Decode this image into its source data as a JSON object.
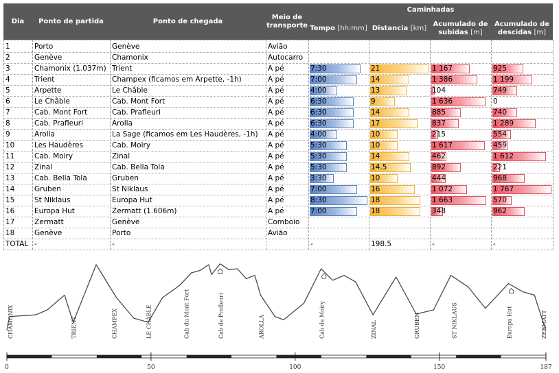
{
  "table": {
    "header": {
      "day": "Dia",
      "start": "Ponto de partida",
      "end": "Ponto de chegada",
      "transport": "Meio de transporte",
      "walks": "Caminhadas",
      "time": "Tempo",
      "time_unit": "[hh:mm]",
      "distance": "Distancia",
      "distance_unit": "[km]",
      "ascent": "Acumulado de subidas",
      "ascent_unit": "[m]",
      "descent": "Acumulado de descidas",
      "descent_unit": "[m]"
    },
    "rows": [
      {
        "day": "1",
        "start": "Porto",
        "end": "Genève",
        "transport": "Avião",
        "time": "",
        "distance": "",
        "ascent": "",
        "descent": ""
      },
      {
        "day": "2",
        "start": "Genève",
        "end": "Chamonix",
        "transport": "Autocarro",
        "time": "",
        "distance": "",
        "ascent": "",
        "descent": ""
      },
      {
        "day": "3",
        "start": "Chamonix (1.037m)",
        "end": "Trient",
        "transport": "A pé",
        "time": "7:30",
        "distance": "21",
        "ascent": "1 167",
        "descent": "925"
      },
      {
        "day": "4",
        "start": "Trient",
        "end": "Champex (ficamos em Arpette, -1h)",
        "transport": "A pé",
        "time": "7:00",
        "distance": "14",
        "ascent": "1 386",
        "descent": "1 199"
      },
      {
        "day": "5",
        "start": "Arpette",
        "end": "Le Châble",
        "transport": "A pé",
        "time": "4:00",
        "distance": "13",
        "ascent": "104",
        "descent": "749"
      },
      {
        "day": "6",
        "start": "Le Châble",
        "end": "Cab. Mont Fort",
        "transport": "A pé",
        "time": "6:30",
        "distance": "9",
        "ascent": "1 636",
        "descent": "0"
      },
      {
        "day": "7",
        "start": "Cab. Mont Fort",
        "end": "Cab. Prafleuri",
        "transport": "A pé",
        "time": "6:30",
        "distance": "14",
        "ascent": "885",
        "descent": "740"
      },
      {
        "day": "8",
        "start": "Cab. Prafleuri",
        "end": "Arolla",
        "transport": "A pé",
        "time": "6:30",
        "distance": "17",
        "ascent": "837",
        "descent": "1 289"
      },
      {
        "day": "9",
        "start": "Arolla",
        "end": "La Sage (ficamos em Les Haudères, -1h)",
        "transport": "A pé",
        "time": "4:00",
        "distance": "10",
        "ascent": "215",
        "descent": "554"
      },
      {
        "day": "10",
        "start": "Les Haudères",
        "end": "Cab. Moiry",
        "transport": "A pé",
        "time": "5:30",
        "distance": "10",
        "ascent": "1 617",
        "descent": "459"
      },
      {
        "day": "11",
        "start": "Cab. Moiry",
        "end": "Zinal",
        "transport": "A pé",
        "time": "5:30",
        "distance": "14",
        "ascent": "462",
        "descent": "1 612"
      },
      {
        "day": "12",
        "start": "Zinal",
        "end": "Cab. Bella Tola",
        "transport": "A pé",
        "time": "5:30",
        "distance": "14.5",
        "ascent": "892",
        "descent": "221"
      },
      {
        "day": "13",
        "start": "Cab. Bella Tola",
        "end": "Gruben",
        "transport": "A pé",
        "time": "3:30",
        "distance": "10",
        "ascent": "444",
        "descent": "968"
      },
      {
        "day": "14",
        "start": "Gruben",
        "end": "St Niklaus",
        "transport": "A pé",
        "time": "7:00",
        "distance": "16",
        "ascent": "1 072",
        "descent": "1 767"
      },
      {
        "day": "15",
        "start": "St Niklaus",
        "end": "Europa Hut",
        "transport": "A pé",
        "time": "8:30",
        "distance": "18",
        "ascent": "1 663",
        "descent": "570"
      },
      {
        "day": "16",
        "start": "Europa Hut",
        "end": "Zermatt (1.606m)",
        "transport": "A pé",
        "time": "7:00",
        "distance": "18",
        "ascent": "348",
        "descent": "962"
      },
      {
        "day": "17",
        "start": "Zermatt",
        "end": "Genève",
        "transport": "Comboio",
        "time": "",
        "distance": "",
        "ascent": "",
        "descent": ""
      },
      {
        "day": "18",
        "start": "Genève",
        "end": "Porto",
        "transport": "Avião",
        "time": "",
        "distance": "",
        "ascent": "",
        "descent": ""
      },
      {
        "day": "TOTAL",
        "start": "-",
        "end": "-",
        "transport": "",
        "time": "-",
        "distance": "198.5",
        "ascent": "-",
        "descent": "-"
      }
    ]
  },
  "chart_data": [
    {
      "type": "table",
      "description_units": {
        "time": "hh:mm",
        "distance": "km",
        "ascent": "m",
        "descent": "m"
      },
      "bar_scales": {
        "time_max_hours": 8.5,
        "distance_max_km": 21,
        "ascent_max_m": 1767,
        "descent_max_m": 1767
      },
      "categories": [
        "3",
        "4",
        "5",
        "6",
        "7",
        "8",
        "9",
        "10",
        "11",
        "12",
        "13",
        "14",
        "15",
        "16"
      ],
      "series": [
        {
          "name": "Tempo",
          "values": [
            7.5,
            7.0,
            4.0,
            6.5,
            6.5,
            6.5,
            4.0,
            5.5,
            5.5,
            5.5,
            3.5,
            7.0,
            8.5,
            7.0
          ]
        },
        {
          "name": "Distancia",
          "values": [
            21,
            14,
            13,
            9,
            14,
            17,
            10,
            10,
            14,
            14.5,
            10,
            16,
            18,
            18
          ]
        },
        {
          "name": "Acumulado de subidas",
          "values": [
            1167,
            1386,
            104,
            1636,
            885,
            837,
            215,
            1617,
            462,
            892,
            444,
            1072,
            1663,
            348
          ]
        },
        {
          "name": "Acumulado de descidas",
          "values": [
            925,
            1199,
            749,
            0,
            740,
            1289,
            554,
            459,
            1612,
            221,
            968,
            1767,
            570,
            962
          ]
        }
      ],
      "colors": {
        "time": "#5b84c4",
        "distance": "#f6b53c",
        "ascent": "#ee5a66",
        "descent": "#ee5a66",
        "header": "#595959"
      }
    },
    {
      "type": "line",
      "x_ticks": [
        "0",
        "50",
        "100",
        "150",
        "187"
      ],
      "xlim": [
        0,
        187
      ],
      "ylim": [
        0,
        1
      ],
      "profile": [
        [
          0,
          0.15
        ],
        [
          0.3,
          0.22
        ],
        [
          1,
          0.32
        ],
        [
          10,
          0.34
        ],
        [
          14,
          0.4
        ],
        [
          20,
          0.58
        ],
        [
          23,
          0.25
        ],
        [
          31,
          0.95
        ],
        [
          38,
          0.55
        ],
        [
          44,
          0.3
        ],
        [
          49,
          0.25
        ],
        [
          54,
          0.55
        ],
        [
          60,
          0.7
        ],
        [
          64,
          0.85
        ],
        [
          67,
          0.88
        ],
        [
          70,
          0.95
        ],
        [
          71,
          0.83
        ],
        [
          74,
          0.96
        ],
        [
          77,
          0.89
        ],
        [
          80,
          0.9
        ],
        [
          83,
          0.78
        ],
        [
          86,
          0.82
        ],
        [
          88,
          0.58
        ],
        [
          93,
          0.32
        ],
        [
          96,
          0.28
        ],
        [
          103,
          0.48
        ],
        [
          109,
          0.9
        ],
        [
          113,
          0.76
        ],
        [
          117,
          0.82
        ],
        [
          121,
          0.74
        ],
        [
          127,
          0.34
        ],
        [
          135,
          0.8
        ],
        [
          142,
          0.35
        ],
        [
          148,
          0.4
        ],
        [
          154,
          0.82
        ],
        [
          160,
          0.68
        ],
        [
          166,
          0.42
        ],
        [
          174,
          0.72
        ],
        [
          179,
          0.62
        ],
        [
          183,
          0.58
        ],
        [
          186.5,
          0.2
        ],
        [
          187,
          0.15
        ]
      ],
      "labels": [
        {
          "text": "CHAMONIX",
          "x": 1
        },
        {
          "text": "TRIENT",
          "x": 23
        },
        {
          "text": "CHAMPEX",
          "x": 37
        },
        {
          "text": "LE CHÂBLE",
          "x": 49
        },
        {
          "text": "Cab du Mont Fort",
          "x": 62
        },
        {
          "text": "Cab de Prafleuri",
          "x": 74
        },
        {
          "text": "AROLLA",
          "x": 88
        },
        {
          "text": "Cab de Moiry",
          "x": 109
        },
        {
          "text": "ZINAL",
          "x": 127
        },
        {
          "text": "GRUBEN",
          "x": 142
        },
        {
          "text": "ST NIKLAUS",
          "x": 155
        },
        {
          "text": "Europa Hut",
          "x": 174
        },
        {
          "text": "ZERMATT",
          "x": 186
        }
      ],
      "huts": [
        74,
        110,
        175
      ]
    }
  ]
}
